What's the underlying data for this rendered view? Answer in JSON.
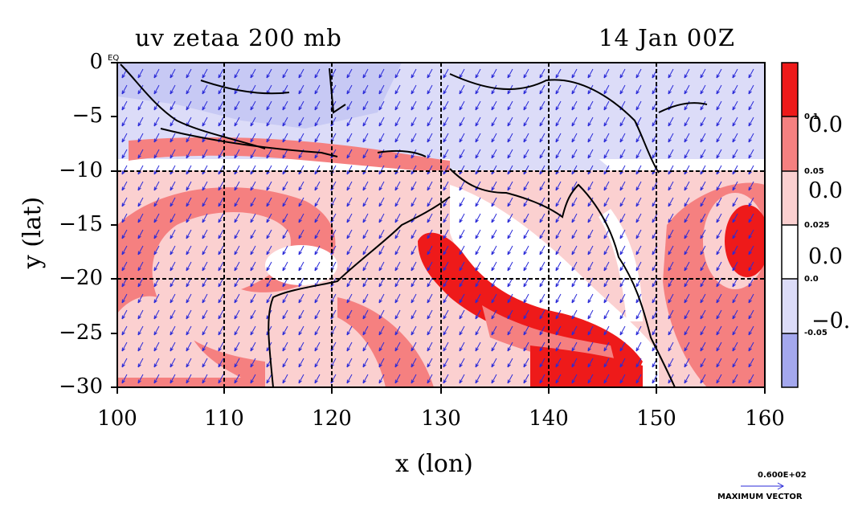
{
  "title": {
    "left": "uv zetaa 200 mb",
    "right": "14 Jan 00Z"
  },
  "axes": {
    "xlabel": "x (lon)",
    "ylabel": "y (lat)",
    "xticks": [
      "100",
      "110",
      "120",
      "130",
      "140",
      "150",
      "160"
    ],
    "yticks": [
      "0",
      "−5",
      "−10",
      "−15",
      "−20",
      "−25",
      "−30"
    ],
    "x_range": [
      100,
      160
    ],
    "y_range": [
      -30,
      0
    ],
    "eq_label": "EQ"
  },
  "colorbar": {
    "small_labels": [
      "0.1",
      "0.05",
      "0.025",
      "0.0",
      "-0.05"
    ],
    "big_labels": [
      "0.0",
      "0.0",
      "0.0",
      "−0."
    ],
    "colors": [
      "#ee1a1a",
      "#f58080",
      "#fbd0d0",
      "#ffffff",
      "#dcdcf8",
      "#a4a8ee"
    ]
  },
  "vector_key": {
    "value": "0.600E+02",
    "label": "MAXIMUM VECTOR"
  },
  "colors": {
    "arrow": "#2a2ad8",
    "contour": "#dd1111",
    "grid": "#000000"
  }
}
